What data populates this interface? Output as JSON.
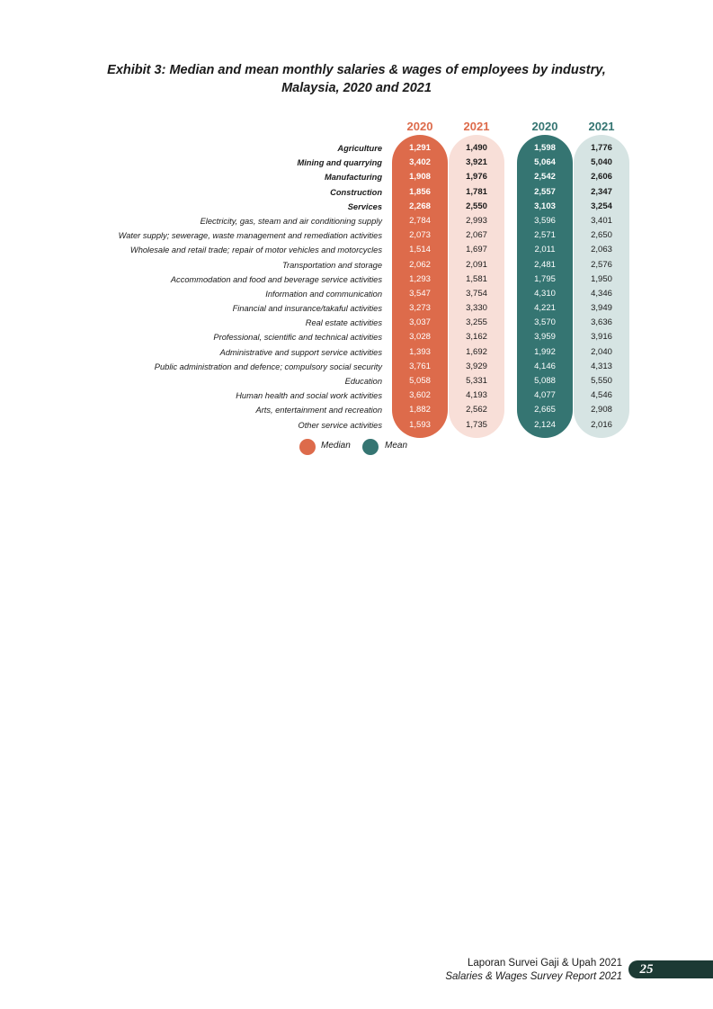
{
  "title": {
    "line1": "Exhibit 3: Median and mean monthly salaries & wages of employees by industry,",
    "line2": "Malaysia, 2020 and 2021"
  },
  "colors": {
    "median_2020": "#dd6b4b",
    "median_2021": "#f8dfd8",
    "mean_2020": "#357572",
    "mean_2021": "#d6e4e3",
    "footer_tab": "#1c3a34"
  },
  "columns": [
    {
      "year": "2020",
      "group": "Median"
    },
    {
      "year": "2021",
      "group": "Median"
    },
    {
      "year": "2020",
      "group": "Mean"
    },
    {
      "year": "2021",
      "group": "Mean"
    }
  ],
  "rows": [
    {
      "industry": "Agriculture",
      "bold": true,
      "v": [
        "1,291",
        "1,490",
        "1,598",
        "1,776"
      ]
    },
    {
      "industry": "Mining and quarrying",
      "bold": true,
      "v": [
        "3,402",
        "3,921",
        "5,064",
        "5,040"
      ]
    },
    {
      "industry": "Manufacturing",
      "bold": true,
      "v": [
        "1,908",
        "1,976",
        "2,542",
        "2,606"
      ]
    },
    {
      "industry": "Construction",
      "bold": true,
      "v": [
        "1,856",
        "1,781",
        "2,557",
        "2,347"
      ]
    },
    {
      "industry": "Services",
      "bold": true,
      "v": [
        "2,268",
        "2,550",
        "3,103",
        "3,254"
      ]
    },
    {
      "industry": "Electricity, gas, steam and air conditioning supply",
      "bold": false,
      "v": [
        "2,784",
        "2,993",
        "3,596",
        "3,401"
      ]
    },
    {
      "industry": "Water supply; sewerage, waste management and remediation activities",
      "bold": false,
      "v": [
        "2,073",
        "2,067",
        "2,571",
        "2,650"
      ]
    },
    {
      "industry": "Wholesale and retail trade; repair of motor vehicles and motorcycles",
      "bold": false,
      "v": [
        "1,514",
        "1,697",
        "2,011",
        "2,063"
      ]
    },
    {
      "industry": "Transportation and storage",
      "bold": false,
      "v": [
        "2,062",
        "2,091",
        "2,481",
        "2,576"
      ]
    },
    {
      "industry": "Accommodation and food and beverage service activities",
      "bold": false,
      "v": [
        "1,293",
        "1,581",
        "1,795",
        "1,950"
      ]
    },
    {
      "industry": "Information and communication",
      "bold": false,
      "v": [
        "3,547",
        "3,754",
        "4,310",
        "4,346"
      ]
    },
    {
      "industry": "Financial and insurance/takaful activities",
      "bold": false,
      "v": [
        "3,273",
        "3,330",
        "4,221",
        "3,949"
      ]
    },
    {
      "industry": "Real estate activities",
      "bold": false,
      "v": [
        "3,037",
        "3,255",
        "3,570",
        "3,636"
      ]
    },
    {
      "industry": "Professional, scientific and technical activities",
      "bold": false,
      "v": [
        "3,028",
        "3,162",
        "3,959",
        "3,916"
      ]
    },
    {
      "industry": "Administrative and support service activities",
      "bold": false,
      "v": [
        "1,393",
        "1,692",
        "1,992",
        "2,040"
      ]
    },
    {
      "industry": "Public administration and defence; compulsory social security",
      "bold": false,
      "v": [
        "3,761",
        "3,929",
        "4,146",
        "4,313"
      ]
    },
    {
      "industry": "Education",
      "bold": false,
      "v": [
        "5,058",
        "5,331",
        "5,088",
        "5,550"
      ]
    },
    {
      "industry": "Human health and social work activities",
      "bold": false,
      "v": [
        "3,602",
        "4,193",
        "4,077",
        "4,546"
      ]
    },
    {
      "industry": "Arts, entertainment and recreation",
      "bold": false,
      "v": [
        "1,882",
        "2,562",
        "2,665",
        "2,908"
      ]
    },
    {
      "industry": "Other service activities",
      "bold": false,
      "v": [
        "1,593",
        "1,735",
        "2,124",
        "2,016"
      ]
    }
  ],
  "legend": {
    "median": "Median",
    "mean": "Mean"
  },
  "footer": {
    "line1": "Laporan Survei Gaji & Upah 2021",
    "line2": "Salaries & Wages Survey Report 2021",
    "page": "25"
  }
}
